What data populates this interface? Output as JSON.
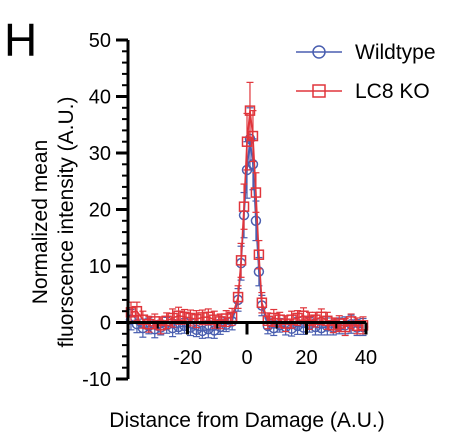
{
  "panel_label": "H",
  "chart_data": {
    "type": "line",
    "xlabel": "Distance from Damage (A.U.)",
    "ylabel": [
      "Normalized mean",
      "fluorscence intensity (A.U.)"
    ],
    "xlim": [
      -40,
      40
    ],
    "ylim": [
      -10,
      50
    ],
    "xticks": [
      -20,
      0,
      20,
      40
    ],
    "yticks": [
      -10,
      0,
      10,
      20,
      30,
      40,
      50
    ],
    "grid": false,
    "legend_position": "top-right",
    "series": [
      {
        "name": "Wildtype",
        "color": "#4a5fb0",
        "marker": "circle",
        "x": [
          -39,
          -37,
          -35,
          -33,
          -31,
          -29,
          -27,
          -25,
          -23,
          -21,
          -19,
          -17,
          -15,
          -13,
          -11,
          -9,
          -7,
          -5,
          -3,
          -2,
          -1,
          0,
          1,
          2,
          3,
          4,
          5,
          7,
          9,
          11,
          13,
          15,
          17,
          19,
          21,
          23,
          25,
          27,
          29,
          31,
          33,
          35,
          37,
          39
        ],
        "y": [
          0.5,
          -0.3,
          -1.0,
          -0.6,
          -1.2,
          -0.9,
          -0.5,
          -1.0,
          -0.8,
          -0.6,
          -0.9,
          -1.3,
          -1.5,
          -1.2,
          -1.4,
          -0.8,
          -0.4,
          0.2,
          4.0,
          10.5,
          19,
          27,
          32.5,
          28,
          18,
          9,
          3,
          -0.6,
          -1.0,
          -0.5,
          -0.8,
          -1.1,
          -0.6,
          -0.9,
          -0.4,
          -0.8,
          -1.0,
          -0.7,
          -0.9,
          -0.6,
          -0.5,
          -0.3,
          -0.9,
          -0.8
        ],
        "error": [
          1.8,
          1.5,
          1.6,
          1.4,
          1.5,
          1.3,
          1.4,
          1.5,
          1.2,
          1.3,
          1.4,
          1.2,
          1.3,
          1.5,
          1.4,
          1.3,
          1.2,
          1.5,
          2.0,
          3.0,
          4.0,
          5.0,
          5.5,
          4.5,
          3.5,
          2.5,
          1.8,
          1.4,
          1.3,
          1.2,
          1.4,
          1.3,
          1.5,
          1.2,
          1.3,
          1.4,
          1.2,
          1.5,
          1.3,
          1.4,
          1.5,
          1.6,
          1.4,
          1.5
        ]
      },
      {
        "name": "LC8 KO",
        "color": "#e0353b",
        "marker": "square",
        "x": [
          -39,
          -37,
          -35,
          -33,
          -31,
          -29,
          -27,
          -25,
          -23,
          -21,
          -19,
          -17,
          -15,
          -13,
          -11,
          -9,
          -7,
          -5,
          -3,
          -2,
          -1,
          0,
          1,
          2,
          3,
          4,
          5,
          7,
          9,
          11,
          13,
          15,
          17,
          19,
          21,
          23,
          25,
          27,
          29,
          31,
          33,
          35,
          37,
          39
        ],
        "y": [
          1.8,
          2.0,
          0.5,
          -0.3,
          0.2,
          -0.5,
          0.3,
          0.8,
          1.2,
          1.0,
          0.8,
          0.6,
          0.9,
          1.0,
          0.5,
          0.2,
          0.7,
          1.0,
          4.5,
          11,
          20.5,
          32,
          37.5,
          33,
          23,
          12,
          3.5,
          0.3,
          0.8,
          0.5,
          -0.2,
          0.5,
          0.8,
          1.2,
          0.3,
          0.5,
          1.0,
          0.3,
          -0.5,
          -0.2,
          -0.8,
          0.2,
          -0.6,
          -0.5
        ],
        "error": [
          1.8,
          1.6,
          1.5,
          1.4,
          1.3,
          1.5,
          1.4,
          1.6,
          1.5,
          1.3,
          1.4,
          1.5,
          1.3,
          1.4,
          1.5,
          1.3,
          1.4,
          1.5,
          2.0,
          3.0,
          4.0,
          5.0,
          5.0,
          4.5,
          3.5,
          2.5,
          1.8,
          1.4,
          1.5,
          1.3,
          1.4,
          1.5,
          1.3,
          1.4,
          1.5,
          1.3,
          1.4,
          1.5,
          1.3,
          1.4,
          1.5,
          1.3,
          1.4,
          1.5
        ]
      }
    ]
  }
}
